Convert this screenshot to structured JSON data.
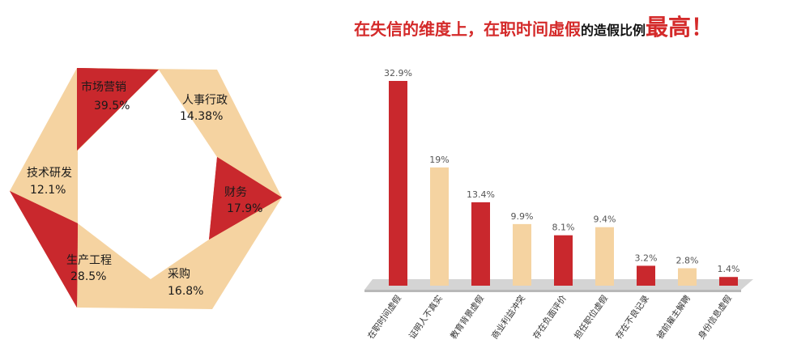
{
  "headline": {
    "part1": "在失信的维度上，在职时间虚假",
    "part2": "的造假比例",
    "part3": "最高！"
  },
  "colors": {
    "red": "#c9282d",
    "beige": "#f5d3a1",
    "accent_text": "#d42a2a"
  },
  "chart_data": [
    {
      "type": "pie",
      "style": "hexagonal ring",
      "segments": [
        {
          "name": "市场营销",
          "value": "39.5%",
          "color": "#c9282d"
        },
        {
          "name": "人事行政",
          "value": "14.38%",
          "color": "#f5d3a1"
        },
        {
          "name": "财务",
          "value": "17.9%",
          "color": "#c9282d"
        },
        {
          "name": "采购",
          "value": "16.8%",
          "color": "#f5d3a1"
        },
        {
          "name": "生产工程",
          "value": "28.5%",
          "color": "#c9282d"
        },
        {
          "name": "技术研发",
          "value": "12.1%",
          "color": "#f5d3a1"
        }
      ]
    },
    {
      "type": "bar",
      "categories": [
        "在职时间虚假",
        "证明人不真实",
        "教育背景虚假",
        "商业利益冲突",
        "存在负面评价",
        "担任职位虚假",
        "存在不良记录",
        "被前雇主解聘",
        "身份信息虚假"
      ],
      "values": [
        32.9,
        19,
        13.4,
        9.9,
        8.1,
        9.4,
        3.2,
        2.8,
        1.4
      ],
      "value_labels": [
        "32.9%",
        "19%",
        "13.4%",
        "9.9%",
        "8.1%",
        "9.4%",
        "3.2%",
        "2.8%",
        "1.4%"
      ],
      "bar_colors": [
        "#c9282d",
        "#f5d3a1",
        "#c9282d",
        "#f5d3a1",
        "#c9282d",
        "#f5d3a1",
        "#c9282d",
        "#f5d3a1",
        "#c9282d"
      ],
      "ylim": [
        0,
        32.9
      ],
      "grid": false
    }
  ]
}
